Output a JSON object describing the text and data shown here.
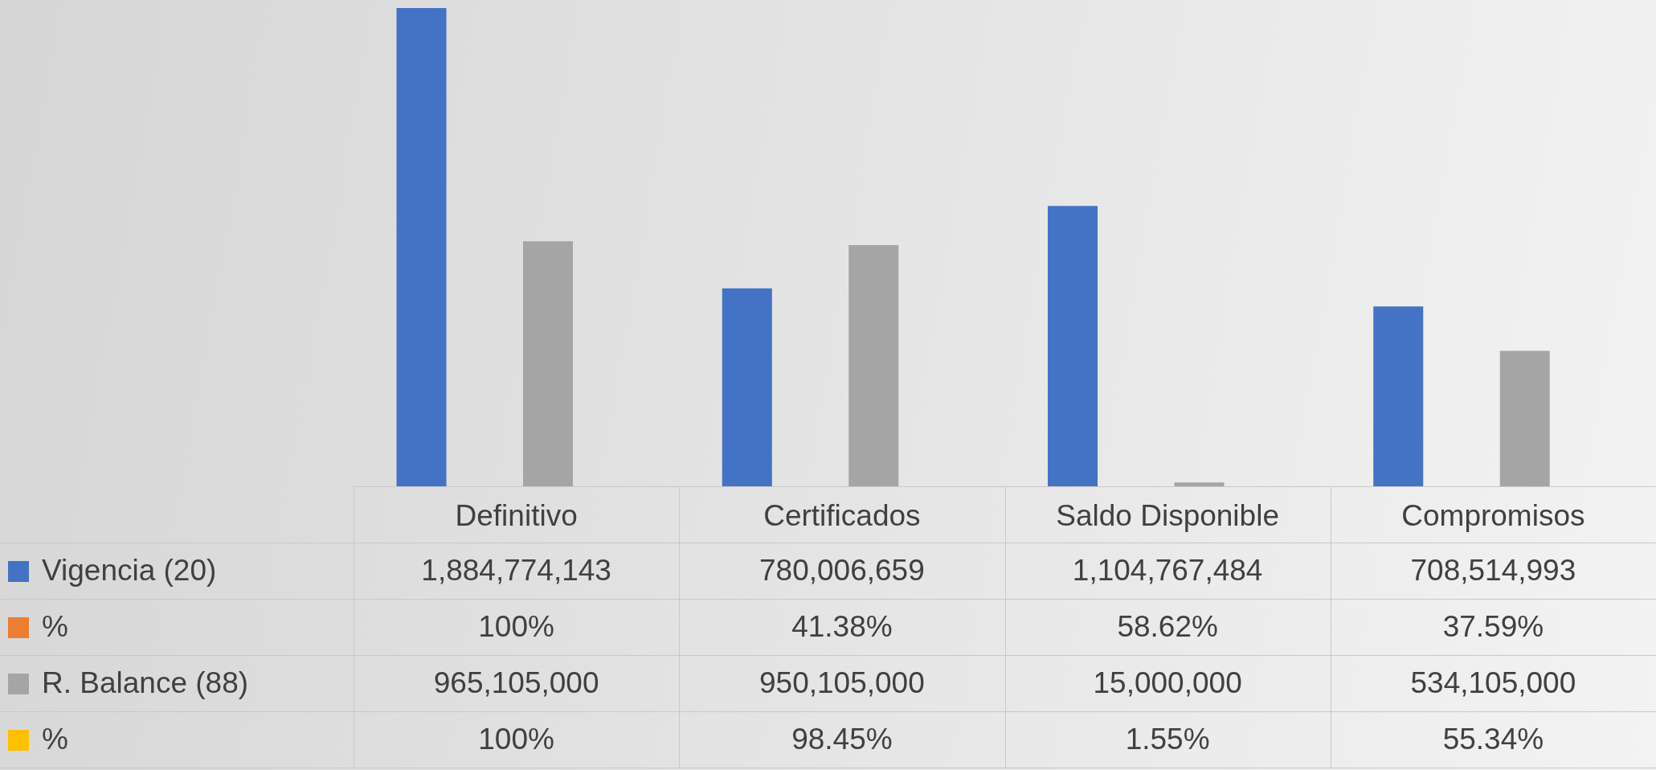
{
  "chart_data": {
    "type": "bar",
    "categories": [
      "Definitivo",
      "Certificados",
      "Saldo Disponible",
      "Compromisos"
    ],
    "series": [
      {
        "name": "Vigencia (20)",
        "color": "#4472c4",
        "values": [
          1884774143,
          780006659,
          1104767484,
          708514993
        ],
        "value_labels": [
          "1,884,774,143",
          "780,006,659",
          "1,104,767,484",
          "708,514,993"
        ]
      },
      {
        "name": "%",
        "color": "#ed7d31",
        "values": [
          100,
          41.38,
          58.62,
          37.59
        ],
        "value_labels": [
          "100%",
          "41.38%",
          "58.62%",
          "37.59%"
        ]
      },
      {
        "name": "R. Balance (88)",
        "color": "#a5a5a5",
        "values": [
          965105000,
          950105000,
          15000000,
          534105000
        ],
        "value_labels": [
          "965,105,000",
          "950,105,000",
          "15,000,000",
          "534,105,000"
        ]
      },
      {
        "name": "%",
        "color": "#ffc000",
        "values": [
          100,
          98.45,
          1.55,
          55.34
        ],
        "value_labels": [
          "100%",
          "98.45%",
          "1.55%",
          "55.34%"
        ]
      }
    ],
    "legend": "bottom"
  }
}
